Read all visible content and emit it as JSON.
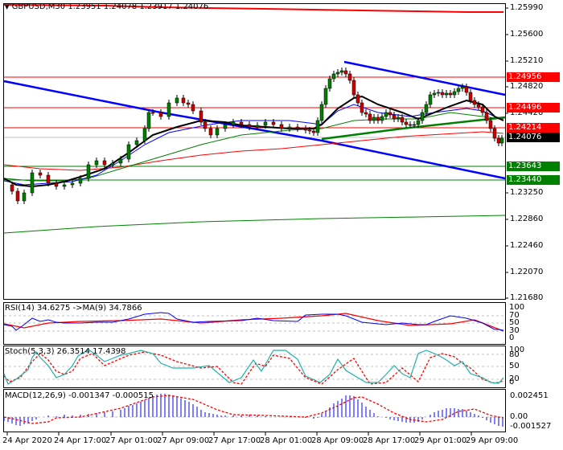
{
  "header": {
    "symbol_label": "GBPUSD,M30",
    "ohlc": "1.23951 1.24078 1.23917 1.24076",
    "collapse_icon": "triangle-down-icon"
  },
  "price_axis": {
    "ticks": [
      "1.25990",
      "1.25600",
      "1.25210",
      "1.24820",
      "1.24420",
      "1.23250",
      "1.22860",
      "1.22460",
      "1.22070",
      "1.21680"
    ]
  },
  "price_labels": [
    {
      "value": "1.24956",
      "color": "#ff0000"
    },
    {
      "value": "1.24496",
      "color": "#ff0000"
    },
    {
      "value": "1.24214",
      "color": "#ff0000"
    },
    {
      "value": "1.24076",
      "color": "#000000"
    },
    {
      "value": "1.23643",
      "color": "#008000"
    },
    {
      "value": "1.23440",
      "color": "#008000"
    }
  ],
  "rsi": {
    "header": "RSI(14) 34.6275  ->MA(9) 34.7866",
    "ticks": [
      "100",
      "70",
      "50",
      "30",
      "0"
    ]
  },
  "stoch": {
    "header": "Stoch(5,3,3) 26.3514 17.4398",
    "ticks": [
      "100",
      "80",
      "50",
      "20",
      "0"
    ]
  },
  "macd": {
    "header": "MACD(12,26,9) -0.001347 -0.000515",
    "ticks": [
      "0.002451",
      "0.00",
      "-0.001527"
    ]
  },
  "time_axis": {
    "labels": [
      "24 Apr 2020",
      "24 Apr 17:00",
      "27 Apr 01:00",
      "27 Apr 09:00",
      "27 Apr 17:00",
      "28 Apr 01:00",
      "28 Apr 09:00",
      "28 Apr 17:00",
      "29 Apr 01:00",
      "29 Apr 09:00"
    ]
  },
  "colors": {
    "bull_candle": "#008000",
    "bear_candle": "#cc0000",
    "resistance": "#ff0000",
    "support": "#008000",
    "channel": "#0000ff",
    "ma_fast": "#000000",
    "ma_mid": "#0000ff",
    "ma_slow": "#008000",
    "ma_long": "#ff0000",
    "rsi_line": "#0000ff",
    "rsi_ma": "#ff0000",
    "stoch_main": "#20b2aa",
    "stoch_signal": "#ff0000",
    "macd_hist": "#0000ff",
    "macd_signal": "#ff0000"
  },
  "chart_data": [
    {
      "type": "candlestick",
      "title": "GBPUSD,M30 1.23951 1.24078 1.23917 1.24076",
      "xlabel": "",
      "ylabel": "",
      "x": [
        "24 Apr 2020",
        "24 Apr 17:00",
        "27 Apr 01:00",
        "27 Apr 09:00",
        "27 Apr 17:00",
        "28 Apr 01:00",
        "28 Apr 09:00",
        "28 Apr 17:00",
        "29 Apr 01:00",
        "29 Apr 09:00"
      ],
      "ylim": [
        1.2168,
        1.2605
      ],
      "last_price": 1.24076,
      "ohlc_last": {
        "open": 1.23951,
        "high": 1.24078,
        "low": 1.23917,
        "close": 1.24076
      },
      "approx_close_by_label": [
        1.2335,
        1.2338,
        1.243,
        1.2438,
        1.2418,
        1.241,
        1.251,
        1.243,
        1.2465,
        1.24
      ],
      "horizontal_levels": {
        "resistance": [
          1.24956,
          1.24496,
          1.24214
        ],
        "support": [
          1.23643,
          1.2344
        ]
      },
      "trendlines": [
        {
          "name": "descending channel lower",
          "color": "blue"
        },
        {
          "name": "descending channel upper",
          "color": "blue"
        },
        {
          "name": "ascending support",
          "color": "green"
        },
        {
          "name": "long-term ascending",
          "color": "green"
        },
        {
          "name": "long-term descending",
          "color": "red",
          "near": 1.2599
        }
      ],
      "moving_averages": [
        "black (fast)",
        "blue",
        "green",
        "red (slow)"
      ]
    },
    {
      "type": "line",
      "title": "RSI(14) 34.6275 ->MA(9) 34.7866",
      "ylim": [
        0,
        100
      ],
      "levels": [
        30,
        50,
        70
      ],
      "series": [
        {
          "name": "RSI(14)",
          "last": 34.6275
        },
        {
          "name": "MA(9)",
          "last": 34.7866
        }
      ]
    },
    {
      "type": "line",
      "title": "Stoch(5,3,3) 26.3514 17.4398",
      "ylim": [
        0,
        100
      ],
      "levels": [
        20,
        50,
        80
      ],
      "series": [
        {
          "name": "%K",
          "last": 26.3514
        },
        {
          "name": "%D",
          "last": 17.4398
        }
      ]
    },
    {
      "type": "bar",
      "title": "MACD(12,26,9) -0.001347 -0.000515",
      "ylim": [
        -0.001527,
        0.002451
      ],
      "series": [
        {
          "name": "MACD",
          "last": -0.001347
        },
        {
          "name": "Signal",
          "last": -0.000515
        }
      ]
    }
  ]
}
